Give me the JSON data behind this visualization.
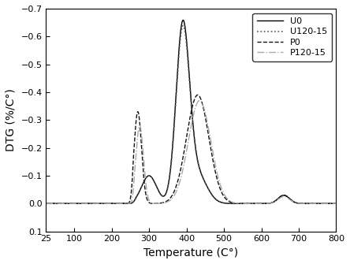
{
  "title": "",
  "xlabel": "Temperature (C°)",
  "ylabel": "DTG (%/C°)",
  "xlim": [
    25,
    800
  ],
  "ylim": [
    0.1,
    -0.7
  ],
  "xticks": [
    25,
    100,
    200,
    300,
    400,
    500,
    600,
    700,
    800
  ],
  "yticks": [
    -0.7,
    -0.6,
    -0.5,
    -0.4,
    -0.3,
    -0.2,
    -0.1,
    0.0,
    0.1
  ],
  "background_color": "#ffffff",
  "legend_labels": [
    "U0",
    "U120-15",
    "P0",
    "P120-15"
  ],
  "legend_styles": [
    {
      "color": "#000000",
      "linestyle": "-",
      "linewidth": 1.0
    },
    {
      "color": "#555555",
      "linestyle": ":",
      "linewidth": 1.2
    },
    {
      "color": "#111111",
      "linestyle": "--",
      "linewidth": 1.0
    },
    {
      "color": "#aaaaaa",
      "linestyle": "-.",
      "linewidth": 1.0
    }
  ]
}
